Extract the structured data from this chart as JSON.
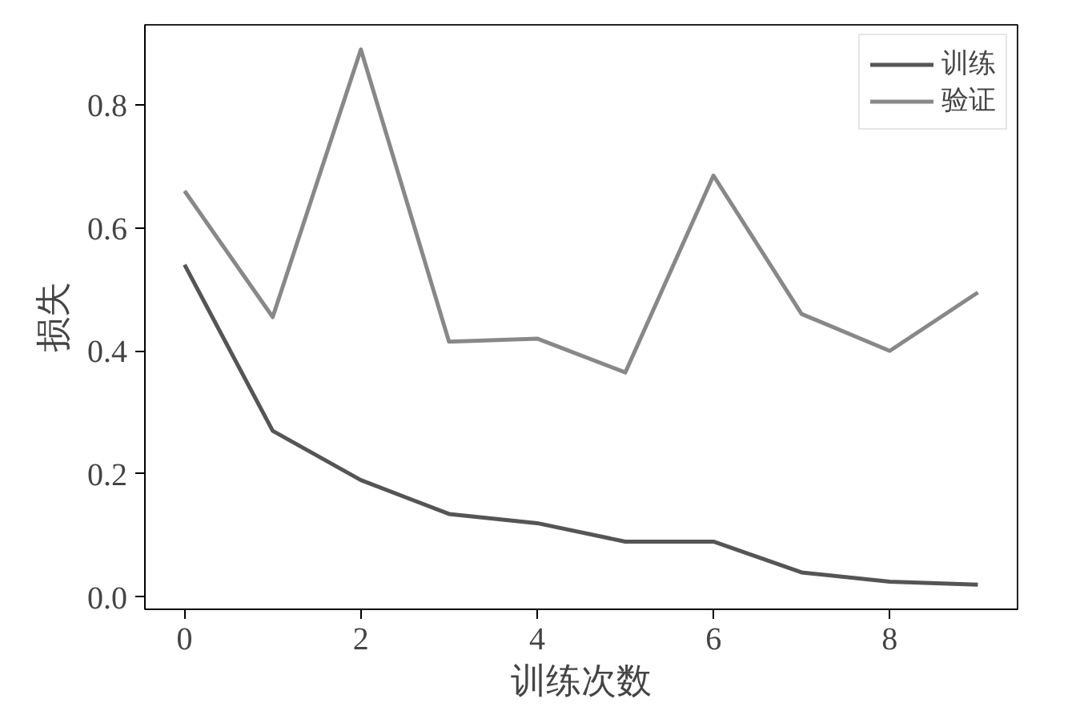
{
  "chart_data": {
    "type": "line",
    "xlabel": "训练次数",
    "ylabel": "损失",
    "x": [
      0,
      1,
      2,
      3,
      4,
      5,
      6,
      7,
      8,
      9
    ],
    "series": [
      {
        "name": "训练",
        "color": "#555555",
        "values": [
          0.54,
          0.27,
          0.19,
          0.135,
          0.12,
          0.09,
          0.09,
          0.04,
          0.025,
          0.02
        ]
      },
      {
        "name": "验证",
        "color": "#888888",
        "values": [
          0.66,
          0.455,
          0.89,
          0.415,
          0.42,
          0.365,
          0.685,
          0.46,
          0.4,
          0.495
        ]
      }
    ],
    "xlim": [
      -0.45,
      9.45
    ],
    "ylim": [
      -0.02,
      0.93
    ],
    "xticks": [
      0,
      2,
      4,
      6,
      8
    ],
    "yticks": [
      {
        "value": 0,
        "label": "0.0"
      },
      {
        "value": 0.2,
        "label": "0.2"
      },
      {
        "value": 0.4,
        "label": "0.4"
      },
      {
        "value": 0.6,
        "label": "0.6"
      },
      {
        "value": 0.8,
        "label": "0.8"
      }
    ],
    "grid": false,
    "legend": "top right",
    "line_style": "solid",
    "marker": "none"
  }
}
